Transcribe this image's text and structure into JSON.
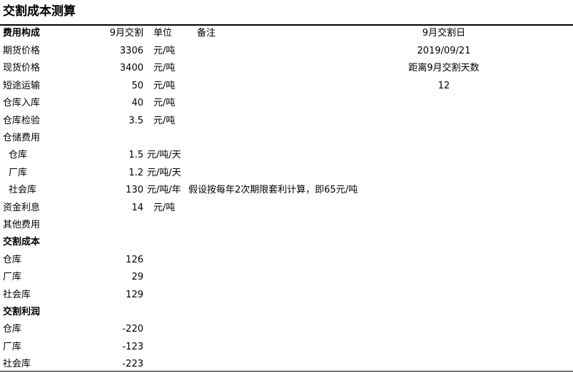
{
  "title": "交割成本测算",
  "header": {
    "label": "费用构成",
    "value": "9月交割",
    "unit": "单位",
    "note": "备注",
    "right": "9月交割日"
  },
  "rows": [
    {
      "label": "期货价格",
      "value": "3306",
      "unit": "元/吨",
      "right": "2019/09/21"
    },
    {
      "label": "现货价格",
      "value": "3400",
      "unit": "元/吨",
      "right": "距离9月交割天数"
    },
    {
      "label": "短途运输",
      "value": "50",
      "unit": "元/吨",
      "right": "12"
    },
    {
      "label": "仓库入库",
      "value": "40",
      "unit": "元/吨"
    },
    {
      "label": "仓库检验",
      "value": "3.5",
      "unit": "元/吨"
    },
    {
      "label": "仓储费用"
    },
    {
      "label": "仓库",
      "value": "1.5",
      "unit": "元/吨/天",
      "indent": true
    },
    {
      "label": "厂库",
      "value": "1.2",
      "unit": "元/吨/天",
      "indent": true
    },
    {
      "label": "社会库",
      "value": "130",
      "unit": "元/吨/年",
      "note": "假设按每年2次期限套利计算，即65元/吨",
      "indent": true
    },
    {
      "label": "资金利息",
      "value": "14",
      "unit": "元/吨"
    },
    {
      "label": "其他费用"
    },
    {
      "label": "交割成本",
      "bold": true
    },
    {
      "label": "仓库",
      "value": "126"
    },
    {
      "label": "厂库",
      "value": "29"
    },
    {
      "label": "社会库",
      "value": "129"
    },
    {
      "label": "交割利润",
      "bold": true
    },
    {
      "label": "仓库",
      "value": "-220"
    },
    {
      "label": "厂库",
      "value": "-123"
    },
    {
      "label": "社会库",
      "value": "-223"
    }
  ]
}
